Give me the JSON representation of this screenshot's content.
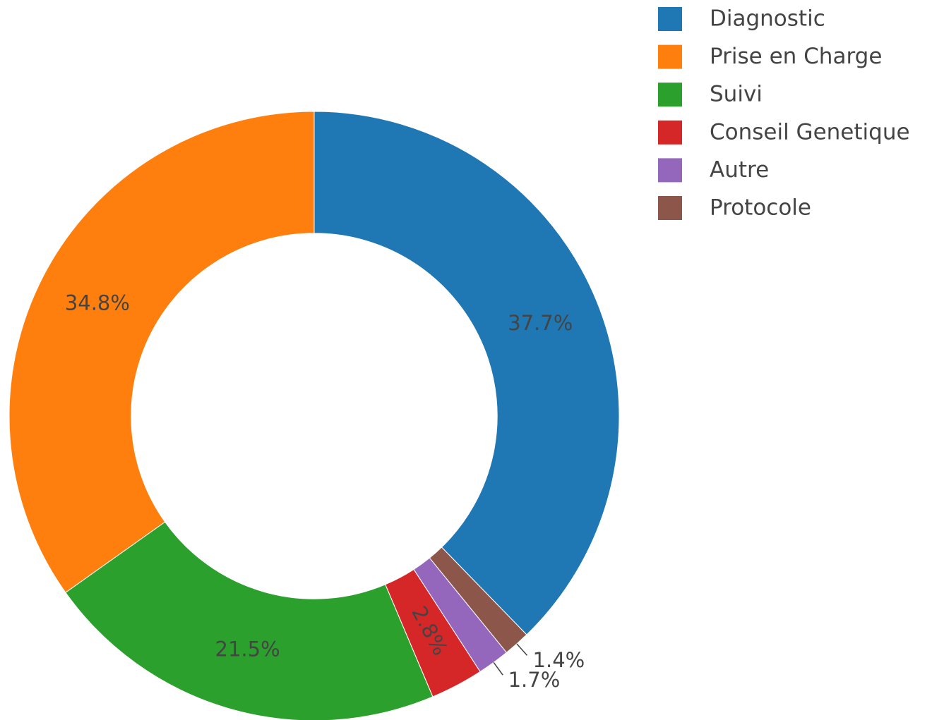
{
  "chart_data": {
    "type": "pie",
    "categories": [
      "Diagnostic",
      "Prise en Charge",
      "Suivi",
      "Conseil Genetique",
      "Autre",
      "Protocole"
    ],
    "values": [
      37.7,
      34.8,
      21.5,
      2.8,
      1.7,
      1.4
    ],
    "value_labels": [
      "37.7%",
      "34.8%",
      "21.5%",
      "2.8%",
      "1.7%",
      "1.4%"
    ],
    "colors": [
      "#1f77b4",
      "#ff7f0e",
      "#2ca02c",
      "#d62728",
      "#9467bd",
      "#8c564b"
    ],
    "hole": 0.6,
    "direction": "counterclockwise",
    "legend": "top-right"
  }
}
